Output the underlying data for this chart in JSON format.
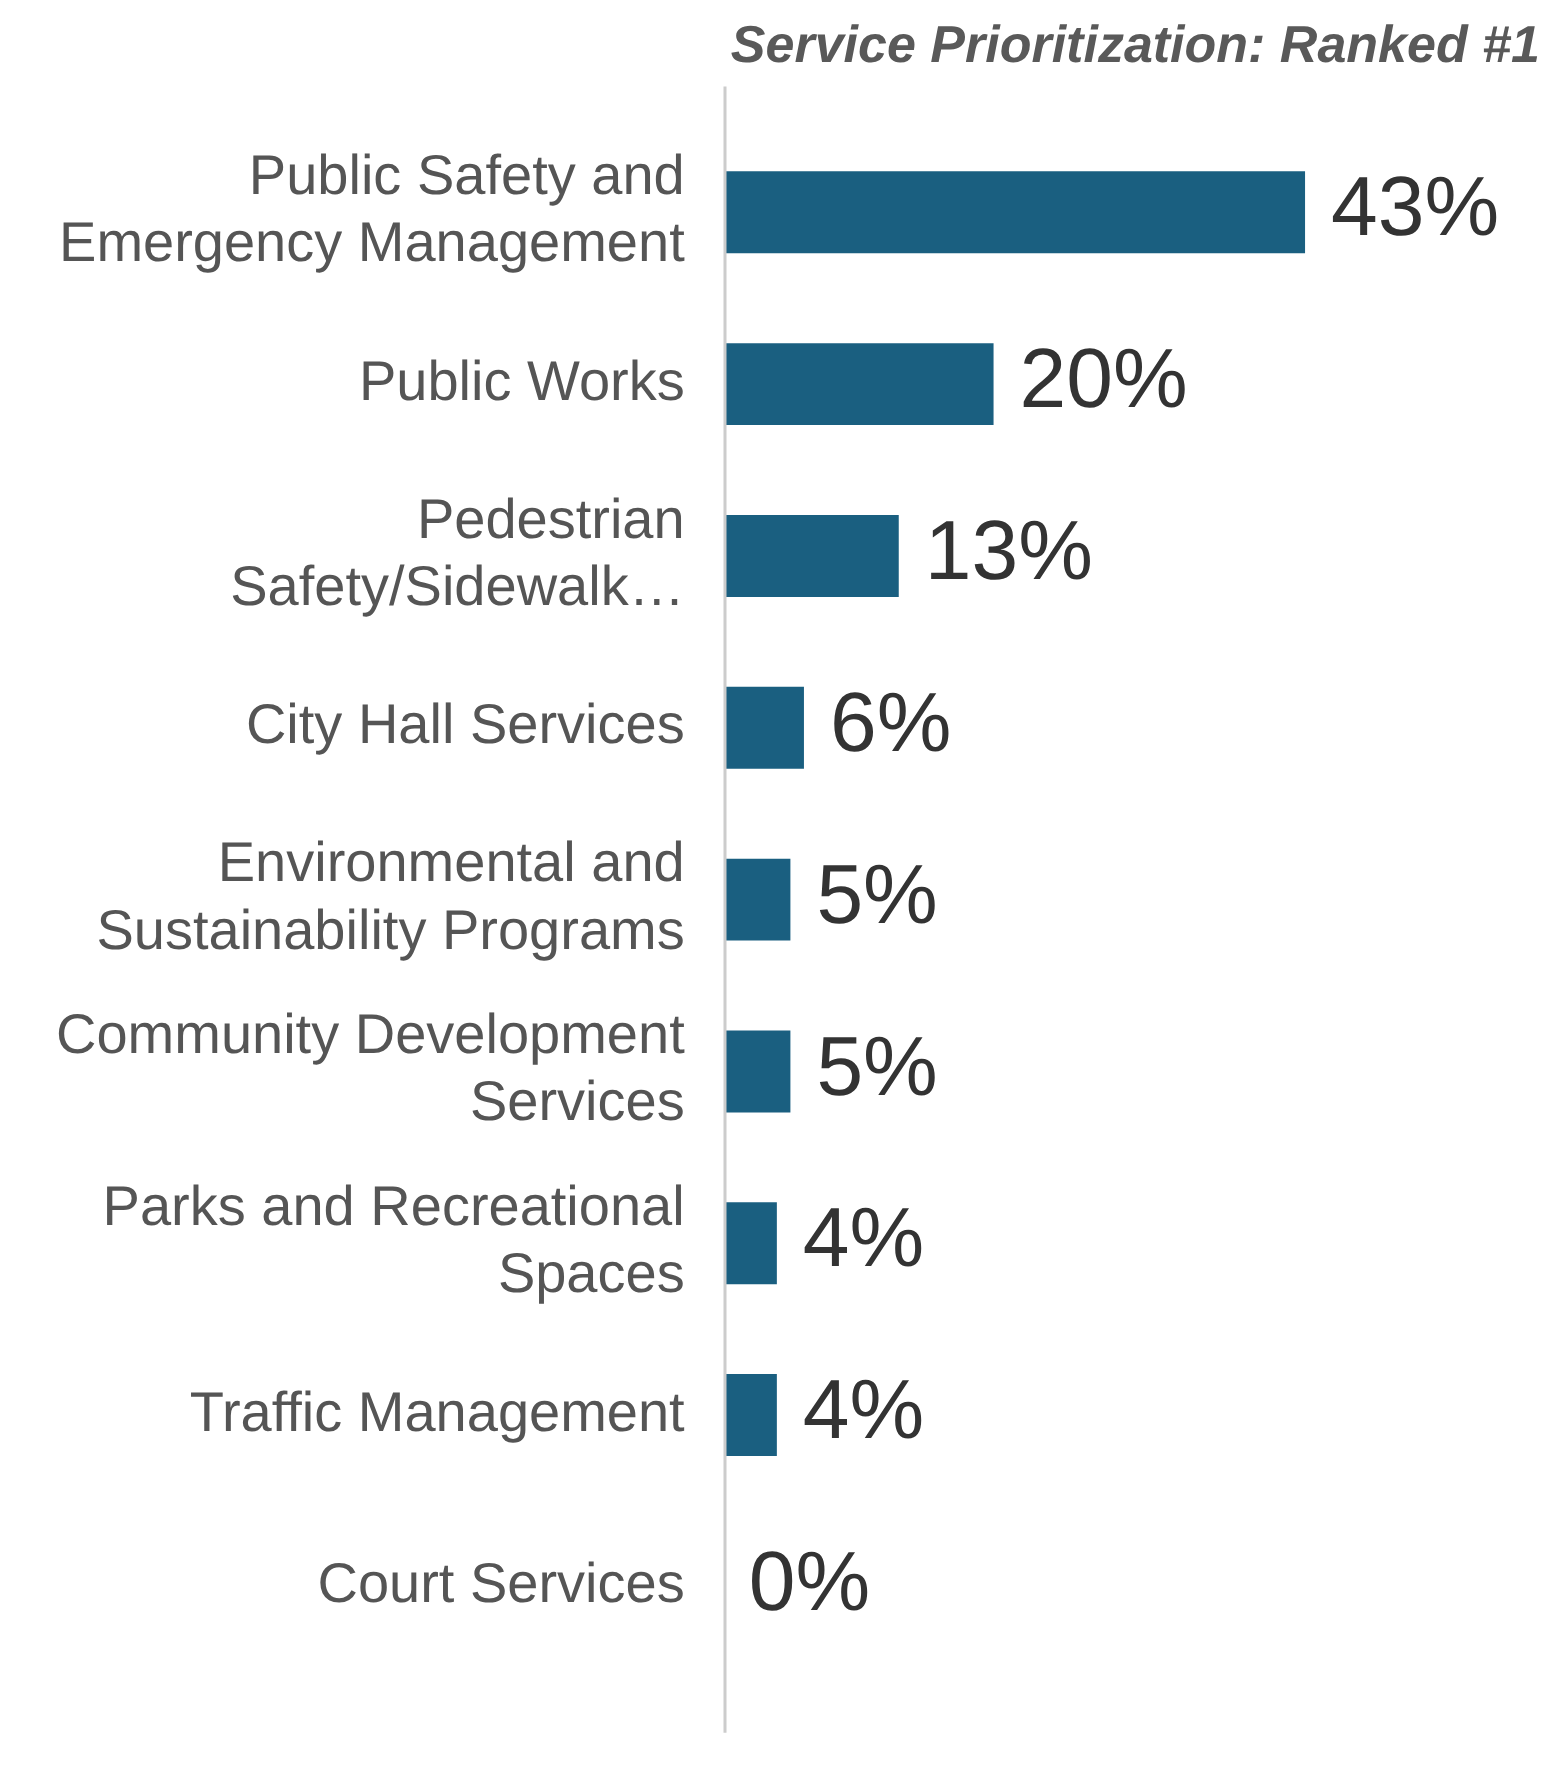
{
  "chart_data": {
    "type": "bar",
    "orientation": "horizontal",
    "title": "Service Prioritization: Ranked #1",
    "categories": [
      "Public Safety and Emergency Management",
      "Public Works",
      "Pedestrian Safety/Sidewalk…",
      "City Hall Services",
      "Environmental and Sustainability Programs",
      "Community Development Services",
      "Parks and Recreational Spaces",
      "Traffic Management",
      "Court Services"
    ],
    "values": [
      43,
      20,
      13,
      6,
      5,
      5,
      4,
      4,
      0
    ],
    "value_labels": [
      "43%",
      "20%",
      "13%",
      "6%",
      "5%",
      "5%",
      "4%",
      "4%",
      "0%"
    ],
    "color": "#1a5f80",
    "grid": false,
    "legend": false
  }
}
